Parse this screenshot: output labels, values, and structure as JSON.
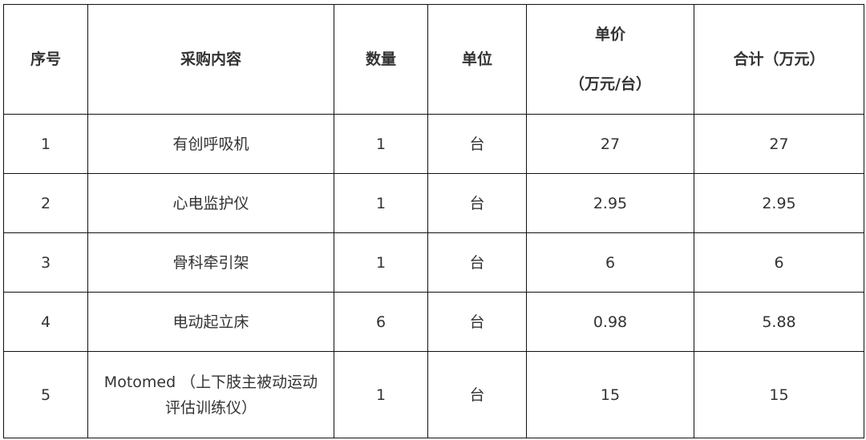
{
  "table": {
    "headers": [
      "序号",
      "采购内容",
      "数量",
      "单位",
      "单价",
      "合计（万元）"
    ],
    "unit_price_sub": "（万元/台）",
    "rows": [
      [
        "1",
        "有创呼吸机",
        "1",
        "台",
        "27",
        "27"
      ],
      [
        "2",
        "心电监护仪",
        "1",
        "台",
        "2.95",
        "2.95"
      ],
      [
        "3",
        "骨科牵引架",
        "1",
        "台",
        "6",
        "6"
      ],
      [
        "4",
        "电动起立床",
        "6",
        "台",
        "0.98",
        "5.88"
      ],
      [
        "5",
        "Motomed （上下肢主被动运动评估训练仪）",
        "1",
        "台",
        "15",
        "15"
      ]
    ]
  }
}
